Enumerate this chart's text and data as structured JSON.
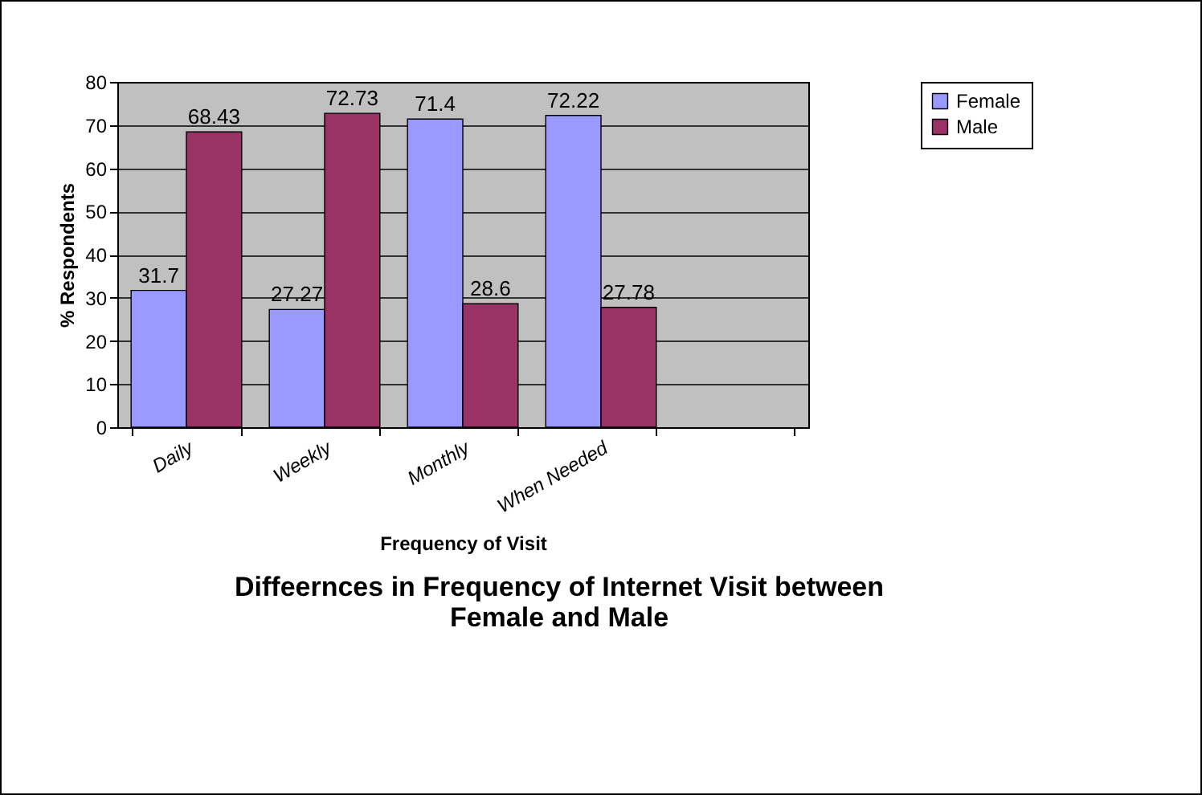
{
  "chart_data": {
    "type": "bar",
    "title": "Diffeernces in Frequency of Internet Visit between Female and Male",
    "xlabel": "Frequency of Visit",
    "ylabel": "% Respondents",
    "categories": [
      "Daily",
      "Weekly",
      "Monthly",
      "When Needed",
      null
    ],
    "series": [
      {
        "name": "Female",
        "color": "#9999ff",
        "values": [
          31.7,
          27.27,
          71.4,
          72.22,
          null
        ]
      },
      {
        "name": "Male",
        "color": "#993366",
        "values": [
          68.43,
          72.73,
          28.6,
          27.78,
          null
        ]
      }
    ],
    "ylim": [
      0,
      80
    ],
    "yticks": [
      0,
      10,
      20,
      30,
      40,
      50,
      60,
      70,
      80
    ],
    "grid": "y",
    "legend": "top right",
    "data_labels": true
  }
}
